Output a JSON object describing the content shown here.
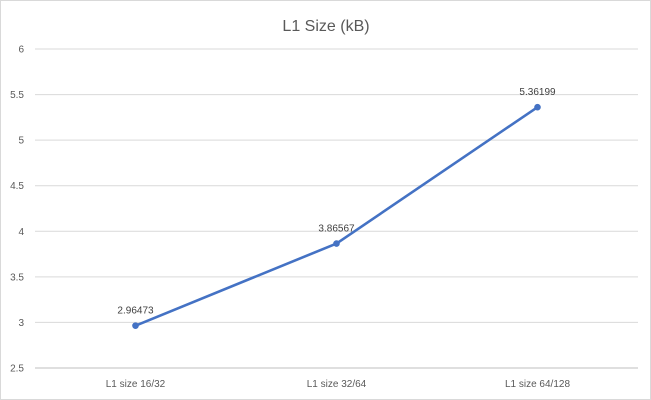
{
  "chart_data": {
    "type": "line",
    "title": "L1 Size (kB)",
    "xlabel": "",
    "ylabel": "",
    "categories": [
      "L1 size 16/32",
      "L1 size 32/64",
      "L1 size 64/128"
    ],
    "series": [
      {
        "values": [
          2.96473,
          3.86567,
          5.36199
        ],
        "data_labels": [
          "2.96473",
          "3.86567",
          "5.36199"
        ],
        "color": "#4472c4"
      }
    ],
    "ylim": [
      2.5,
      6
    ],
    "yticks": [
      2.5,
      3,
      3.5,
      4,
      4.5,
      5,
      5.5,
      6
    ],
    "ytick_labels": [
      "2.5",
      "3",
      "3.5",
      "4",
      "4.5",
      "5",
      "5.5",
      "6"
    ],
    "grid": true,
    "legend": "none"
  }
}
